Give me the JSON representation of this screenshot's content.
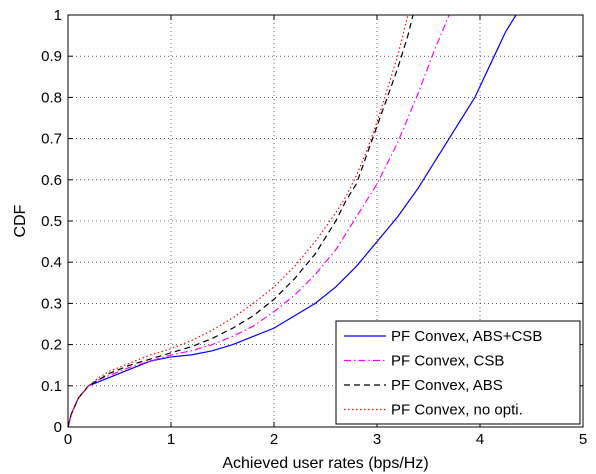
{
  "chart_data": {
    "type": "line",
    "title": "",
    "xlabel": "Achieved user rates (bps/Hz)",
    "ylabel": "CDF",
    "xlim": [
      0,
      5
    ],
    "ylim": [
      0,
      1
    ],
    "xticks": [
      0,
      1,
      2,
      3,
      4,
      5
    ],
    "yticks": [
      0,
      0.1,
      0.2,
      0.3,
      0.4,
      0.5,
      0.6,
      0.7,
      0.8,
      0.9,
      1
    ],
    "xtick_labels": [
      "0",
      "1",
      "2",
      "3",
      "4",
      "5"
    ],
    "ytick_labels": [
      "0",
      "0.1",
      "0.2",
      "0.3",
      "0.4",
      "0.5",
      "0.6",
      "0.7",
      "0.8",
      "0.9",
      "1"
    ],
    "grid": true,
    "legend_position": "bottom-right",
    "series": [
      {
        "name": "PF Convex, ABS+CSB",
        "color": "#0000ff",
        "dash": "solid",
        "x": [
          0,
          0.03,
          0.1,
          0.2,
          0.3,
          0.4,
          0.6,
          0.8,
          1.0,
          1.2,
          1.4,
          1.6,
          1.8,
          2.0,
          2.2,
          2.4,
          2.6,
          2.8,
          3.0,
          3.2,
          3.4,
          3.6,
          3.8,
          3.95,
          4.1,
          4.25,
          4.35
        ],
        "y": [
          0,
          0.03,
          0.07,
          0.1,
          0.11,
          0.12,
          0.14,
          0.16,
          0.17,
          0.175,
          0.185,
          0.2,
          0.22,
          0.24,
          0.27,
          0.3,
          0.34,
          0.39,
          0.45,
          0.51,
          0.58,
          0.66,
          0.74,
          0.8,
          0.88,
          0.96,
          1.0
        ]
      },
      {
        "name": "PF Convex, CSB",
        "color": "#ff00ff",
        "dash": "dashdot",
        "x": [
          0,
          0.03,
          0.1,
          0.2,
          0.3,
          0.4,
          0.6,
          0.8,
          1.0,
          1.2,
          1.4,
          1.6,
          1.8,
          2.0,
          2.2,
          2.4,
          2.6,
          2.8,
          3.0,
          3.2,
          3.4,
          3.55,
          3.7
        ],
        "y": [
          0,
          0.03,
          0.07,
          0.1,
          0.115,
          0.125,
          0.145,
          0.16,
          0.175,
          0.185,
          0.2,
          0.22,
          0.245,
          0.28,
          0.32,
          0.37,
          0.43,
          0.51,
          0.59,
          0.69,
          0.81,
          0.91,
          1.0
        ]
      },
      {
        "name": "PF Convex, ABS",
        "color": "#000000",
        "dash": "dashed",
        "x": [
          0,
          0.03,
          0.1,
          0.2,
          0.3,
          0.4,
          0.6,
          0.8,
          1.0,
          1.2,
          1.4,
          1.6,
          1.8,
          2.0,
          2.2,
          2.4,
          2.6,
          2.7,
          2.8,
          2.9,
          3.0,
          3.1,
          3.2,
          3.3,
          3.35
        ],
        "y": [
          0,
          0.03,
          0.07,
          0.1,
          0.115,
          0.13,
          0.15,
          0.165,
          0.18,
          0.195,
          0.215,
          0.24,
          0.27,
          0.31,
          0.36,
          0.42,
          0.5,
          0.55,
          0.59,
          0.66,
          0.73,
          0.8,
          0.87,
          0.95,
          1.0
        ]
      },
      {
        "name": "PF Convex, no opti.",
        "color": "#ff0000",
        "dash": "dotted",
        "x": [
          0,
          0.03,
          0.1,
          0.2,
          0.3,
          0.4,
          0.6,
          0.8,
          1.0,
          1.2,
          1.4,
          1.6,
          1.8,
          2.0,
          2.2,
          2.4,
          2.6,
          2.7,
          2.8,
          2.9,
          3.0,
          3.1,
          3.2,
          3.3
        ],
        "y": [
          0,
          0.03,
          0.07,
          0.1,
          0.12,
          0.135,
          0.155,
          0.175,
          0.19,
          0.21,
          0.235,
          0.265,
          0.3,
          0.34,
          0.39,
          0.45,
          0.52,
          0.56,
          0.61,
          0.67,
          0.74,
          0.82,
          0.9,
          1.0
        ]
      }
    ]
  }
}
